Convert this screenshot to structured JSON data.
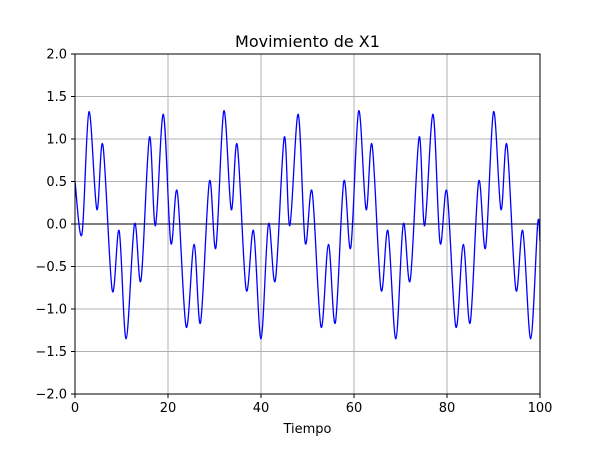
{
  "chart_data": {
    "type": "line",
    "title": "Movimiento de X1",
    "xlabel": "Tiempo",
    "ylabel": "",
    "xlim": [
      0,
      100
    ],
    "ylim": [
      -2.0,
      2.0
    ],
    "x_ticks": [
      0,
      20,
      40,
      60,
      80,
      100
    ],
    "y_ticks": [
      -2.0,
      -1.5,
      -1.0,
      -0.5,
      0.0,
      0.5,
      1.0,
      1.5,
      2.0
    ],
    "x_tick_labels": [
      "0",
      "20",
      "40",
      "60",
      "80",
      "100"
    ],
    "y_tick_labels": [
      "−2.0",
      "−1.5",
      "−1.0",
      "−0.5",
      "0.0",
      "0.5",
      "1.0",
      "1.5",
      "2.0"
    ],
    "grid": true,
    "zero_line": true,
    "series": [
      {
        "color": "#0000ff",
        "points": [
          [
            0.0,
            0.5
          ],
          [
            1.5,
            -0.12
          ],
          [
            3.0,
            1.32
          ],
          [
            4.7,
            0.17
          ],
          [
            6.0,
            0.93
          ],
          [
            8.0,
            -0.78
          ],
          [
            9.5,
            -0.08
          ],
          [
            11.0,
            -1.35
          ],
          [
            12.8,
            0.0
          ],
          [
            14.2,
            -0.66
          ],
          [
            16.0,
            1.02
          ],
          [
            17.3,
            -0.02
          ],
          [
            19.0,
            1.29
          ],
          [
            20.6,
            -0.22
          ],
          [
            22.0,
            0.38
          ],
          [
            23.9,
            -1.21
          ],
          [
            25.6,
            -0.24
          ],
          [
            27.0,
            -1.16
          ],
          [
            28.9,
            0.5
          ],
          [
            30.3,
            -0.28
          ],
          [
            32.0,
            1.33
          ],
          [
            33.6,
            0.17
          ],
          [
            34.9,
            0.93
          ],
          [
            36.8,
            -0.77
          ],
          [
            38.4,
            -0.08
          ],
          [
            40.0,
            -1.35
          ],
          [
            41.6,
            0.0
          ],
          [
            43.1,
            -0.66
          ],
          [
            45.0,
            1.02
          ],
          [
            46.2,
            -0.02
          ],
          [
            48.0,
            1.29
          ],
          [
            49.5,
            -0.22
          ],
          [
            51.0,
            0.38
          ],
          [
            52.9,
            -1.21
          ],
          [
            54.5,
            -0.24
          ],
          [
            56.0,
            -1.16
          ],
          [
            57.8,
            0.5
          ],
          [
            59.3,
            -0.28
          ],
          [
            61.0,
            1.33
          ],
          [
            62.6,
            0.17
          ],
          [
            63.9,
            0.93
          ],
          [
            65.8,
            -0.77
          ],
          [
            67.3,
            -0.08
          ],
          [
            69.0,
            -1.35
          ],
          [
            70.6,
            0.0
          ],
          [
            72.1,
            -0.66
          ],
          [
            74.0,
            1.02
          ],
          [
            75.2,
            -0.02
          ],
          [
            77.0,
            1.29
          ],
          [
            78.5,
            -0.22
          ],
          [
            80.0,
            0.38
          ],
          [
            81.9,
            -1.21
          ],
          [
            83.5,
            -0.24
          ],
          [
            85.0,
            -1.16
          ],
          [
            86.8,
            0.5
          ],
          [
            88.3,
            -0.28
          ],
          [
            90.0,
            1.32
          ],
          [
            91.6,
            0.17
          ],
          [
            92.9,
            0.93
          ],
          [
            94.8,
            -0.77
          ],
          [
            96.3,
            -0.08
          ],
          [
            98.0,
            -1.35
          ],
          [
            99.5,
            0.0
          ],
          [
            100.0,
            -0.2
          ]
        ]
      }
    ]
  }
}
